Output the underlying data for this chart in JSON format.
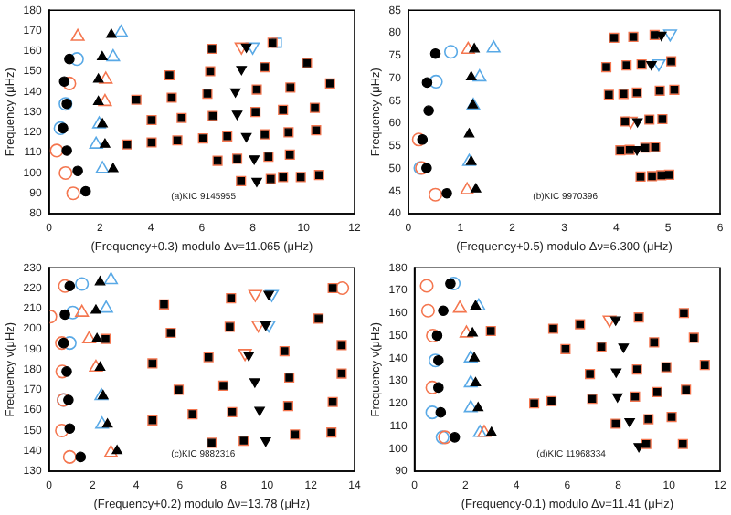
{
  "chart_data": [
    {
      "type": "scatter",
      "xlabel": "(Frequency+0.3) modulo Δν=11.065 (μHz)",
      "ylabel": "Frequency (μHz)",
      "annotations": [
        "(a)KIC 9145955"
      ],
      "xlim": [
        0,
        12
      ],
      "xticks": [
        0,
        2,
        4,
        6,
        8,
        10,
        12
      ],
      "ylim": [
        80,
        180
      ],
      "yticks": [
        80,
        90,
        100,
        110,
        120,
        130,
        140,
        150,
        160,
        170,
        180
      ],
      "series": [
        {
          "color": "#000000",
          "marker": "circle",
          "x": [
            0.8,
            0.6,
            0.7,
            0.55,
            0.7,
            1.13,
            1.44
          ],
          "values": [
            156,
            145,
            134,
            122,
            111,
            101,
            91
          ]
        },
        {
          "color": "#000000",
          "marker": "triangle",
          "x": [
            2.45,
            2.09,
            1.94,
            1.94,
            2.1,
            2.2,
            2.52
          ],
          "values": [
            168,
            157,
            146,
            135,
            124,
            114,
            102
          ]
        },
        {
          "color": "#000000",
          "marker": "square",
          "x": [
            6.4,
            8.78,
            4.73,
            6.33,
            8.47,
            10.13,
            3.43,
            4.82,
            6.22,
            8.16,
            9.48,
            11.04,
            4.03,
            5.21,
            6.43,
            8.11,
            9.19,
            10.44,
            3.07,
            4.03,
            5.04,
            6.05,
            7.0,
            8.47,
            9.41,
            10.49,
            6.62,
            7.39,
            8.62,
            9.46,
            7.54,
            8.71,
            9.19,
            9.89,
            10.61
          ],
          "values": [
            161,
            164,
            148,
            150,
            152,
            154,
            136,
            137,
            139,
            141,
            142,
            144,
            126,
            127,
            128,
            130,
            131,
            132,
            114,
            115,
            116,
            117,
            118,
            119,
            120,
            121,
            106,
            107,
            108,
            109,
            96,
            97,
            98,
            98,
            99
          ]
        },
        {
          "color": "#000000",
          "marker": "triangle-down",
          "x": [
            7.75,
            7.56,
            7.32,
            7.39,
            7.75,
            8.06,
            8.16
          ],
          "values": [
            162,
            151,
            140,
            129,
            118,
            107,
            96
          ]
        },
        {
          "color": "#f4764f",
          "marker": "circle",
          "x": [
            0.8,
            0.3,
            0.65,
            0.95
          ],
          "values": [
            144,
            111,
            100,
            90
          ]
        },
        {
          "color": "#f4764f",
          "marker": "triangle",
          "x": [
            1.13,
            2.23,
            2.2
          ],
          "values": [
            167,
            146,
            135
          ]
        },
        {
          "color": "#f4764f",
          "marker": "square",
          "x": [
            6.4,
            8.78,
            4.73,
            6.33,
            8.47,
            10.13,
            3.43,
            4.82,
            6.22,
            8.16,
            9.48,
            11.04,
            4.03,
            5.21,
            6.43,
            8.11,
            9.19,
            10.44,
            3.07,
            4.03,
            5.04,
            6.05,
            7.0,
            8.47,
            9.41,
            10.49,
            6.62,
            7.39,
            8.62,
            9.46,
            7.54,
            8.71,
            9.19,
            9.89,
            10.61
          ],
          "values": [
            161,
            164,
            148,
            150,
            152,
            154,
            136,
            137,
            139,
            141,
            142,
            144,
            126,
            127,
            128,
            130,
            131,
            132,
            114,
            115,
            116,
            117,
            118,
            119,
            120,
            121,
            106,
            107,
            108,
            109,
            96,
            97,
            98,
            98,
            99
          ]
        },
        {
          "color": "#f4764f",
          "marker": "triangle-down",
          "x": [
            7.56
          ],
          "values": [
            162
          ]
        },
        {
          "color": "#59a9e6",
          "marker": "circle",
          "x": [
            1.1,
            0.65,
            0.45
          ],
          "values": [
            156,
            134,
            122
          ]
        },
        {
          "color": "#59a9e6",
          "marker": "triangle",
          "x": [
            2.83,
            2.52,
            1.97,
            1.85,
            2.1
          ],
          "values": [
            169,
            157,
            124,
            114,
            102
          ]
        },
        {
          "color": "#59a9e6",
          "marker": "square",
          "x": [
            8.95
          ],
          "values": [
            164
          ]
        },
        {
          "color": "#59a9e6",
          "marker": "triangle-down",
          "x": [
            8.0
          ],
          "values": [
            162
          ]
        }
      ]
    },
    {
      "type": "scatter",
      "xlabel": "(Frequency+0.5) modulo Δν=6.300 (μHz)",
      "ylabel": "Frequency (μHz)",
      "annotations": [
        "(b)KIC 9970396"
      ],
      "xlim": [
        0,
        6
      ],
      "xticks": [
        0,
        1,
        2,
        3,
        4,
        5,
        6
      ],
      "ylim": [
        40,
        85
      ],
      "yticks": [
        40,
        45,
        50,
        55,
        60,
        65,
        70,
        75,
        80,
        85
      ],
      "series": [
        {
          "color": "#000000",
          "marker": "circle",
          "x": [
            0.52,
            0.36,
            0.39,
            0.27,
            0.35,
            0.74
          ],
          "values": [
            75.4,
            69,
            62.8,
            56.4,
            50.1,
            44.5
          ]
        },
        {
          "color": "#000000",
          "marker": "triangle",
          "x": [
            1.27,
            1.21,
            1.24,
            1.17,
            1.21,
            1.3
          ],
          "values": [
            76.4,
            70.2,
            64,
            57.6,
            51.5,
            45.4
          ]
        },
        {
          "color": "#000000",
          "marker": "square",
          "x": [
            3.96,
            4.33,
            4.74,
            3.81,
            4.2,
            4.49,
            5.06,
            3.86,
            4.14,
            4.4,
            4.84,
            5.12,
            4.17,
            4.64,
            4.89,
            4.08,
            4.26,
            4.56,
            4.75,
            4.47,
            4.69,
            4.87,
            5.02
          ],
          "values": [
            78.9,
            79.1,
            79.5,
            72.4,
            72.8,
            73,
            73.7,
            66.3,
            66.5,
            66.8,
            67.2,
            67.4,
            60.4,
            60.8,
            60.9,
            54,
            54.1,
            54.6,
            54.7,
            48.2,
            48.3,
            48.5,
            48.6
          ]
        },
        {
          "color": "#000000",
          "marker": "triangle-down",
          "x": [
            4.87,
            4.68,
            4.41,
            4.4
          ],
          "values": [
            79.5,
            73,
            60.4,
            54.2
          ]
        },
        {
          "color": "#f4764f",
          "marker": "circle",
          "x": [
            0.52,
            0.2,
            0.26
          ],
          "values": [
            44.2,
            56.4,
            50.1
          ]
        },
        {
          "color": "#f4764f",
          "marker": "triangle",
          "x": [
            1.15,
            1.13
          ],
          "values": [
            76.3,
            45.2
          ]
        },
        {
          "color": "#f4764f",
          "marker": "square",
          "x": [
            3.96,
            4.33,
            4.74,
            3.81,
            4.2,
            4.49,
            5.06,
            3.86,
            4.14,
            4.4,
            4.84,
            5.12,
            4.17,
            4.64,
            4.89,
            4.08,
            4.26,
            4.56,
            4.75,
            4.47,
            4.69,
            4.87,
            5.02
          ],
          "values": [
            78.9,
            79.1,
            79.5,
            72.4,
            72.8,
            73,
            73.7,
            66.3,
            66.5,
            66.8,
            67.2,
            67.4,
            60.4,
            60.8,
            60.9,
            54,
            54.1,
            54.6,
            54.7,
            48.2,
            48.3,
            48.5,
            48.6
          ]
        },
        {
          "color": "#f4764f",
          "marker": "triangle-down",
          "x": [
            4.28
          ],
          "values": [
            60.5
          ]
        },
        {
          "color": "#59a9e6",
          "marker": "circle",
          "x": [
            0.82,
            0.53,
            0.23
          ],
          "values": [
            75.8,
            69.2,
            50.1
          ]
        },
        {
          "color": "#59a9e6",
          "marker": "triangle",
          "x": [
            1.64,
            1.37,
            1.25,
            1.17
          ],
          "values": [
            76.6,
            70.2,
            63.9,
            51.5
          ]
        },
        {
          "color": "#59a9e6",
          "marker": "triangle-down",
          "x": [
            5.04,
            4.82
          ],
          "values": [
            79.8,
            73.2
          ]
        }
      ]
    },
    {
      "type": "scatter",
      "xlabel": "(Frequency+0.2) modulo Δν=13.78 (μHz)",
      "ylabel": "Frequency ν(μHz)",
      "annotations": [
        "(c)KIC 9882316"
      ],
      "xlim": [
        0,
        14
      ],
      "xticks": [
        0,
        2,
        4,
        6,
        8,
        10,
        12,
        14
      ],
      "ylim": [
        130,
        230
      ],
      "yticks": [
        130,
        140,
        150,
        160,
        170,
        180,
        190,
        200,
        210,
        220,
        230
      ],
      "series": [
        {
          "color": "#000000",
          "marker": "circle",
          "x": [
            0.95,
            0.73,
            0.67,
            0.81,
            0.89,
            0.95,
            1.45
          ],
          "values": [
            221,
            207,
            193,
            179,
            165,
            151,
            137
          ]
        },
        {
          "color": "#000000",
          "marker": "triangle",
          "x": [
            2.34,
            2.15,
            2.2,
            2.34,
            2.48,
            2.68,
            3.12
          ],
          "values": [
            223,
            209,
            195,
            181,
            167,
            153,
            140
          ]
        },
        {
          "color": "#000000",
          "marker": "square",
          "x": [
            2.59,
            5.27,
            5.58,
            7.31,
            4.74,
            5.94,
            7.99,
            6.58,
            8.39,
            4.74,
            7.45,
            8.92,
            8.34,
            8.28,
            13.0,
            10.79,
            12.35,
            13.41,
            13.41,
            11.01,
            13.0,
            10.96,
            11.27,
            12.94
          ],
          "values": [
            195,
            212,
            198,
            186,
            183,
            170,
            172,
            158,
            159,
            155,
            144,
            145,
            215,
            201,
            220,
            189,
            205,
            192,
            178,
            176,
            164,
            162,
            148,
            149
          ]
        },
        {
          "color": "#000000",
          "marker": "triangle-down",
          "x": [
            10.07,
            9.93,
            9.15,
            9.43,
            9.65,
            9.93
          ],
          "values": [
            217,
            202,
            187,
            174,
            160,
            145
          ]
        },
        {
          "color": "#f4764f",
          "marker": "circle",
          "x": [
            0.06,
            0.73,
            0.59,
            0.61,
            0.59,
            0.95,
            0.67,
            13.44
          ],
          "values": [
            206,
            221,
            193,
            179,
            150,
            137,
            165,
            220
          ]
        },
        {
          "color": "#f4764f",
          "marker": "triangle",
          "x": [
            1.51,
            1.84,
            2.15,
            2.84
          ],
          "values": [
            208,
            195,
            181,
            139
          ]
        },
        {
          "color": "#f4764f",
          "marker": "square",
          "x": [
            2.59,
            5.27,
            5.58,
            7.31,
            4.74,
            5.94,
            7.99,
            6.58,
            8.39,
            4.74,
            7.45,
            8.92,
            8.34,
            8.28,
            13.0,
            10.79,
            12.35,
            13.41,
            13.41,
            11.01,
            13.0,
            10.96,
            11.27,
            12.94
          ],
          "values": [
            195,
            212,
            198,
            186,
            183,
            170,
            172,
            158,
            159,
            155,
            144,
            145,
            215,
            201,
            220,
            189,
            205,
            192,
            178,
            176,
            164,
            162,
            148,
            149
          ]
        },
        {
          "color": "#f4764f",
          "marker": "triangle-down",
          "x": [
            9.45,
            9.59,
            8.98
          ],
          "values": [
            217,
            202,
            188
          ]
        },
        {
          "color": "#59a9e6",
          "marker": "circle",
          "x": [
            1.51,
            1.09,
            0.95,
            0.67
          ],
          "values": [
            222,
            208,
            193,
            165
          ]
        },
        {
          "color": "#59a9e6",
          "marker": "triangle",
          "x": [
            2.84,
            2.62,
            2.4,
            2.43
          ],
          "values": [
            224,
            210,
            167,
            153
          ]
        },
        {
          "color": "#59a9e6",
          "marker": "triangle-down",
          "x": [
            10.21,
            10.07
          ],
          "values": [
            217,
            202
          ]
        }
      ]
    },
    {
      "type": "scatter",
      "xlabel": "(Frequency-0.1) modulo Δν=11.41 (μHz)",
      "ylabel": "Frequency ν(μHz)",
      "annotations": [
        "(d)KIC 11968334"
      ],
      "xlim": [
        0,
        12
      ],
      "xticks": [
        0,
        2,
        4,
        6,
        8,
        10,
        12
      ],
      "ylim": [
        90,
        180
      ],
      "yticks": [
        90,
        100,
        110,
        120,
        130,
        140,
        150,
        160,
        170,
        180
      ],
      "series": [
        {
          "color": "#000000",
          "marker": "circle",
          "x": [
            1.41,
            1.13,
            0.89,
            0.94,
            0.94,
            1.03,
            1.58
          ],
          "values": [
            173,
            161,
            150,
            139,
            127,
            116,
            105
          ]
        },
        {
          "color": "#000000",
          "marker": "triangle",
          "x": [
            2.4,
            2.28,
            2.35,
            2.4,
            2.5,
            3.02
          ],
          "values": [
            163,
            151,
            140,
            129,
            118,
            107
          ]
        },
        {
          "color": "#000000",
          "marker": "square",
          "x": [
            3.0,
            5.45,
            6.5,
            8.81,
            10.58,
            5.93,
            7.34,
            9.41,
            10.97,
            6.89,
            8.74,
            9.89,
            11.4,
            6.98,
            8.66,
            9.53,
            10.66,
            5.38,
            4.7,
            7.9,
            9.19,
            10.1,
            9.1,
            10.54
          ],
          "values": [
            152,
            153,
            155,
            158,
            160,
            144,
            145,
            147,
            149,
            133,
            135,
            136,
            137,
            122,
            123,
            125,
            126,
            121,
            120,
            111,
            113,
            114,
            102,
            102
          ]
        },
        {
          "color": "#000000",
          "marker": "triangle-down",
          "x": [
            7.9,
            8.21,
            7.92,
            7.97,
            8.45,
            8.81
          ],
          "values": [
            157,
            145,
            134,
            123,
            112,
            101
          ]
        },
        {
          "color": "#f4764f",
          "marker": "circle",
          "x": [
            0.48,
            0.53,
            0.72,
            0.7,
            1.2
          ],
          "values": [
            172,
            161,
            150,
            127,
            105
          ]
        },
        {
          "color": "#f4764f",
          "marker": "triangle",
          "x": [
            1.78,
            2.04,
            2.74
          ],
          "values": [
            162,
            151,
            107
          ]
        },
        {
          "color": "#f4764f",
          "marker": "square",
          "x": [
            3.0,
            5.45,
            6.5,
            8.81,
            10.58,
            5.93,
            7.34,
            9.41,
            10.97,
            6.89,
            8.74,
            9.89,
            11.4,
            6.98,
            8.66,
            9.53,
            10.66,
            5.38,
            4.7,
            7.9,
            9.19,
            10.1,
            9.1,
            10.54
          ],
          "values": [
            152,
            153,
            155,
            158,
            160,
            144,
            145,
            147,
            149,
            133,
            135,
            136,
            137,
            122,
            123,
            125,
            126,
            121,
            120,
            111,
            113,
            114,
            102,
            102
          ]
        },
        {
          "color": "#f4764f",
          "marker": "triangle-down",
          "x": [
            7.66
          ],
          "values": [
            157
          ]
        },
        {
          "color": "#59a9e6",
          "marker": "circle",
          "x": [
            1.54,
            0.82,
            0.7,
            1.1
          ],
          "values": [
            173,
            139,
            116,
            105
          ]
        },
        {
          "color": "#59a9e6",
          "marker": "triangle",
          "x": [
            2.52,
            2.21,
            2.21,
            2.21,
            2.57
          ],
          "values": [
            163,
            140,
            129,
            118,
            107
          ]
        }
      ]
    }
  ]
}
